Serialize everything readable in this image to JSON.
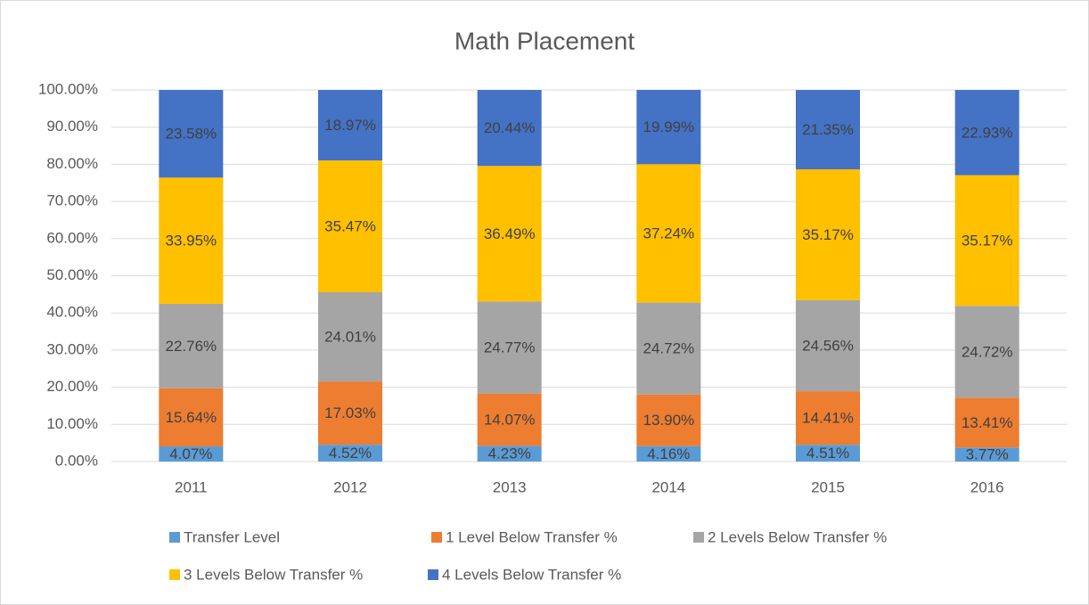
{
  "chart_data": {
    "type": "bar",
    "stacked": true,
    "title": "Math Placement",
    "categories": [
      "2011",
      "2012",
      "2013",
      "2014",
      "2015",
      "2016"
    ],
    "series": [
      {
        "name": "Transfer Level",
        "color": "#5b9bd5",
        "values": [
          4.07,
          4.52,
          4.23,
          4.16,
          4.51,
          3.77
        ],
        "value_labels": [
          "4.07%",
          "4.52%",
          "4.23%",
          "4.16%",
          "4.51%",
          "3.77%"
        ]
      },
      {
        "name": "1 Level Below Transfer %",
        "color": "#ed7d31",
        "values": [
          15.64,
          17.03,
          14.07,
          13.9,
          14.41,
          13.41
        ],
        "value_labels": [
          "15.64%",
          "17.03%",
          "14.07%",
          "13.90%",
          "14.41%",
          "13.41%"
        ]
      },
      {
        "name": "2 Levels Below Transfer %",
        "color": "#a5a5a5",
        "values": [
          22.76,
          24.01,
          24.77,
          24.72,
          24.56,
          24.72
        ],
        "value_labels": [
          "22.76%",
          "24.01%",
          "24.77%",
          "24.72%",
          "24.56%",
          "24.72%"
        ]
      },
      {
        "name": "3 Levels Below Transfer %",
        "color": "#ffc000",
        "values": [
          33.95,
          35.47,
          36.49,
          37.24,
          35.17,
          35.17
        ],
        "value_labels": [
          "33.95%",
          "35.47%",
          "36.49%",
          "37.24%",
          "35.17%",
          "35.17%"
        ]
      },
      {
        "name": "4 Levels Below Transfer %",
        "color": "#4472c4",
        "values": [
          23.58,
          18.97,
          20.44,
          19.99,
          21.35,
          22.93
        ],
        "value_labels": [
          "23.58%",
          "18.97%",
          "20.44%",
          "19.99%",
          "21.35%",
          "22.93%"
        ]
      }
    ],
    "ylim": [
      0,
      100
    ],
    "yticks": [
      {
        "value": 0,
        "label": "0.00%"
      },
      {
        "value": 10,
        "label": "10.00%"
      },
      {
        "value": 20,
        "label": "20.00%"
      },
      {
        "value": 30,
        "label": "30.00%"
      },
      {
        "value": 40,
        "label": "40.00%"
      },
      {
        "value": 50,
        "label": "50.00%"
      },
      {
        "value": 60,
        "label": "60.00%"
      },
      {
        "value": 70,
        "label": "70.00%"
      },
      {
        "value": 80,
        "label": "80.00%"
      },
      {
        "value": 90,
        "label": "90.00%"
      },
      {
        "value": 100,
        "label": "100.00%"
      }
    ],
    "grid": true,
    "legend": "bottom"
  }
}
